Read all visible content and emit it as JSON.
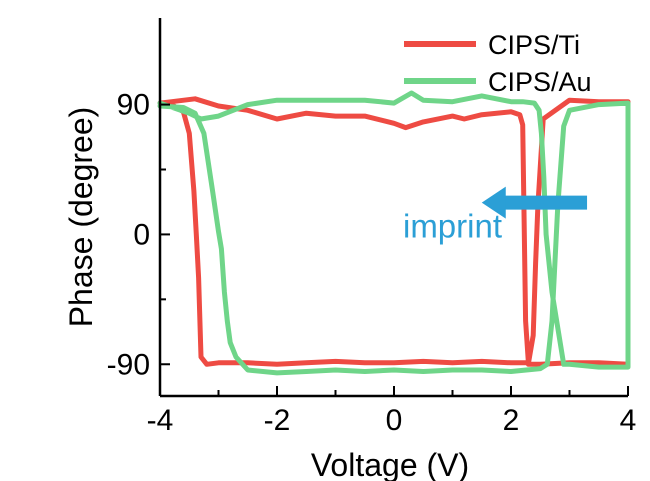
{
  "colors": {
    "series_ti": "#ee4b43",
    "series_au": "#6fd589",
    "annotation": "#2b9fd6",
    "axis": "#000000"
  },
  "chart_data": {
    "type": "line",
    "title": "",
    "xlabel": "Voltage (V)",
    "ylabel": "Phase (degree)",
    "xlim": [
      -4,
      4
    ],
    "ylim": [
      -112,
      150
    ],
    "xticks": [
      -4,
      -2,
      0,
      2,
      4
    ],
    "xtick_labels": [
      "-4",
      "-2",
      "0",
      "2",
      "4"
    ],
    "yticks": [
      -90,
      0,
      90
    ],
    "ytick_labels": [
      "-90",
      "0",
      "90"
    ],
    "grid": false,
    "legend_position": "top-right",
    "series": [
      {
        "name": "CIPS/Ti",
        "x": [
          -4.0,
          -3.8,
          -3.6,
          -3.5,
          -3.42,
          -3.38,
          -3.34,
          -3.3,
          -3.2,
          -3.0,
          -2.5,
          -2.0,
          -1.5,
          -1.0,
          -0.5,
          0.0,
          0.5,
          1.0,
          1.5,
          2.0,
          2.3,
          2.38,
          2.42,
          2.46,
          2.55,
          3.0,
          3.5,
          4.0,
          4.0,
          3.5,
          3.0,
          2.5,
          2.3,
          2.25,
          2.22,
          2.2,
          2.15,
          2.0,
          1.5,
          1.2,
          1.0,
          0.5,
          0.2,
          0.0,
          -0.5,
          -1.0,
          -1.5,
          -2.0,
          -2.5,
          -3.0,
          -3.4,
          -3.8,
          -4.0
        ],
        "y": [
          91,
          90,
          85,
          70,
          30,
          0,
          -30,
          -85,
          -90,
          -89,
          -89,
          -90,
          -89,
          -88,
          -89,
          -89,
          -88,
          -89,
          -88,
          -89,
          -89,
          -70,
          -20,
          20,
          80,
          93,
          92,
          92,
          -90,
          -89,
          -89,
          -90,
          -90,
          -60,
          20,
          76,
          83,
          85,
          83,
          80,
          82,
          78,
          74,
          77,
          82,
          82,
          84,
          80,
          86,
          89,
          94,
          92,
          91
        ]
      },
      {
        "name": "CIPS/Au",
        "x": [
          -4.0,
          -3.6,
          -3.4,
          -3.25,
          -3.1,
          -3.0,
          -2.95,
          -2.9,
          -2.85,
          -2.8,
          -2.7,
          -2.5,
          -2.0,
          -1.5,
          -1.0,
          -0.5,
          0.0,
          0.5,
          1.0,
          1.5,
          2.0,
          2.5,
          2.62,
          2.7,
          2.75,
          2.8,
          2.9,
          3.0,
          3.5,
          4.0,
          4.0,
          3.5,
          3.0,
          2.9,
          2.7,
          2.6,
          2.56,
          2.52,
          2.48,
          2.4,
          2.2,
          2.0,
          1.5,
          1.0,
          0.5,
          0.3,
          0.0,
          -0.5,
          -1.0,
          -1.5,
          -2.0,
          -2.5,
          -3.0,
          -3.3,
          -3.5,
          -4.0
        ],
        "y": [
          89,
          88,
          84,
          70,
          30,
          2,
          -10,
          -40,
          -60,
          -75,
          -85,
          -94,
          -96,
          -95,
          -94,
          -95,
          -94,
          -95,
          -94,
          -94,
          -95,
          -93,
          -90,
          -60,
          -20,
          20,
          75,
          86,
          90,
          91,
          -92,
          -92,
          -90,
          -90,
          -40,
          0,
          40,
          70,
          86,
          91,
          92,
          92,
          96,
          92,
          93,
          98,
          91,
          93,
          93,
          93,
          93,
          90,
          82,
          80,
          84,
          91
        ]
      }
    ],
    "annotations": [
      {
        "text": "imprint",
        "type": "arrow",
        "direction": "left",
        "from": [
          3.3,
          22
        ],
        "to": [
          1.5,
          22
        ]
      }
    ]
  }
}
